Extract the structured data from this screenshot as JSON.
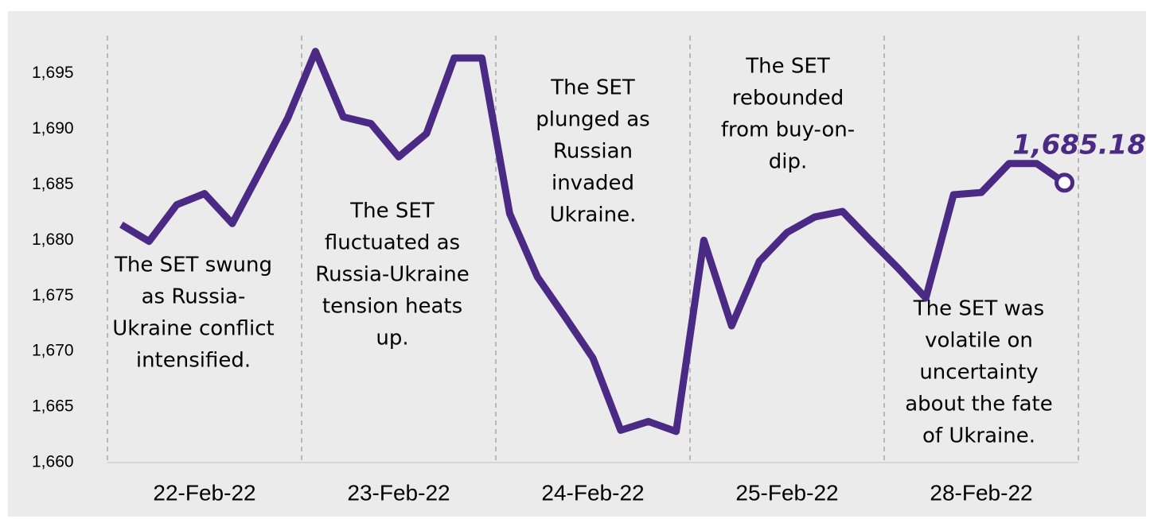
{
  "chart_data": {
    "type": "line",
    "categories": [
      null,
      null,
      null,
      "22-Feb-22",
      null,
      null,
      null,
      null,
      null,
      null,
      "23-Feb-22",
      null,
      null,
      null,
      null,
      null,
      null,
      "24-Feb-22",
      null,
      null,
      null,
      null,
      null,
      null,
      "25-Feb-22",
      null,
      null,
      null,
      null,
      null,
      null,
      "28-Feb-22",
      null,
      null,
      null
    ],
    "series": [
      {
        "name": null,
        "color": "#4b2a85",
        "values": [
          1681.4,
          1679.9,
          1683.2,
          1684.2,
          1681.5,
          1686.2,
          1691.0,
          1697.0,
          1691.1,
          1690.5,
          1687.5,
          1689.6,
          1696.4,
          1696.4,
          1682.4,
          1676.7,
          1673.1,
          1669.4,
          1662.9,
          1663.7,
          1662.8,
          1680.0,
          1672.3,
          1678.1,
          1680.7,
          1682.1,
          1682.6,
          1680.0,
          1677.5,
          1674.8,
          1684.1,
          1684.3,
          1686.9,
          1686.9,
          1685.18
        ],
        "value_labels": [
          null,
          null,
          null,
          null,
          null,
          null,
          null,
          null,
          null,
          null,
          null,
          null,
          null,
          null,
          null,
          null,
          null,
          null,
          null,
          null,
          null,
          null,
          null,
          null,
          null,
          null,
          null,
          null,
          null,
          null,
          null,
          null,
          null,
          null,
          "1,685.18"
        ]
      }
    ],
    "ylim": [
      1660,
      1698.4
    ],
    "yticks": [
      {
        "value": 1660,
        "label": "1,660"
      },
      {
        "value": 1665,
        "label": "1,665"
      },
      {
        "value": 1670,
        "label": "1,670"
      },
      {
        "value": 1675,
        "label": "1,675"
      },
      {
        "value": 1680,
        "label": "1,680"
      },
      {
        "value": 1685,
        "label": "1,685"
      },
      {
        "value": 1690,
        "label": "1,690"
      },
      {
        "value": 1695,
        "label": "1,695"
      }
    ],
    "xgrid": true,
    "annotations": [
      {
        "lines": [
          "The SET swung",
          "as Russia-",
          "Ukraine conflict",
          "intensified."
        ]
      },
      {
        "lines": [
          "The SET",
          "fluctuated as",
          "Russia-Ukraine",
          "tension heats",
          "up."
        ]
      },
      {
        "lines": [
          "The SET",
          "plunged as",
          "Russian",
          "invaded",
          "Ukraine."
        ]
      },
      {
        "lines": [
          "The SET",
          "rebounded",
          "from buy-on-",
          "dip."
        ]
      },
      {
        "lines": [
          "The SET was",
          "volatile on",
          "uncertainty",
          "about the fate",
          "of Ukraine."
        ]
      }
    ]
  }
}
